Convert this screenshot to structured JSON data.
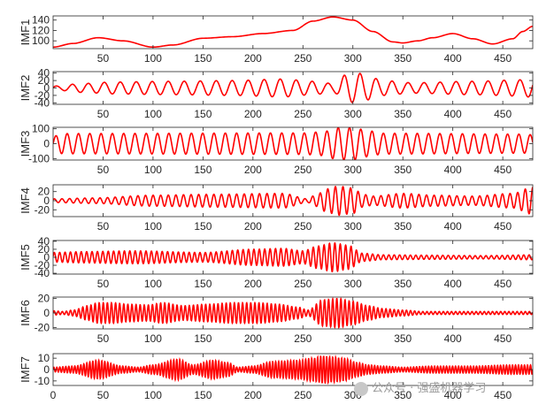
{
  "figure": {
    "watermark": "公众号 · 强盛机器学习"
  },
  "chart_data": [
    {
      "type": "line",
      "ylabel": "IMF1",
      "xlim": [
        0,
        480
      ],
      "ylim": [
        85,
        148
      ],
      "yticks": [
        100,
        120,
        140
      ],
      "xticks": [
        50,
        100,
        150,
        200,
        250,
        300,
        350,
        400,
        450
      ],
      "series": [
        {
          "color": "#ff0000",
          "x": [
            0,
            20,
            45,
            70,
            100,
            120,
            150,
            180,
            210,
            240,
            260,
            280,
            300,
            320,
            340,
            350,
            365,
            380,
            400,
            420,
            440,
            460,
            470,
            480
          ],
          "y": [
            88,
            95,
            106,
            100,
            88,
            92,
            105,
            108,
            114,
            120,
            138,
            146,
            140,
            118,
            98,
            96,
            100,
            106,
            114,
            104,
            94,
            104,
            118,
            128
          ]
        }
      ]
    },
    {
      "type": "line",
      "ylabel": "IMF2",
      "xlim": [
        0,
        480
      ],
      "ylim": [
        -44,
        44
      ],
      "yticks": [
        -40,
        -20,
        0,
        20,
        40
      ],
      "xticks": [
        50,
        100,
        150,
        200,
        250,
        300,
        350,
        400,
        450
      ],
      "osc": {
        "period": 16,
        "phase": 0.3,
        "amp_x": [
          0,
          30,
          60,
          120,
          180,
          230,
          260,
          280,
          295,
          305,
          315,
          330,
          360,
          420,
          470,
          480
        ],
        "amp_y": [
          5,
          12,
          16,
          18,
          20,
          24,
          18,
          12,
          38,
          40,
          32,
          20,
          14,
          18,
          22,
          26
        ]
      }
    },
    {
      "type": "line",
      "ylabel": "IMF3",
      "xlim": [
        0,
        480
      ],
      "ylim": [
        -110,
        110
      ],
      "yticks": [
        -100,
        0,
        100
      ],
      "xticks": [
        50,
        100,
        150,
        200,
        250,
        300,
        350,
        400,
        450
      ],
      "osc": {
        "period": 11.3,
        "phase": 0,
        "amp_x": [
          0,
          10,
          250,
          270,
          285,
          300,
          315,
          330,
          470,
          480
        ],
        "amp_y": [
          50,
          68,
          72,
          80,
          108,
          108,
          88,
          70,
          64,
          60
        ]
      }
    },
    {
      "type": "line",
      "ylabel": "IMF4",
      "xlim": [
        0,
        480
      ],
      "ylim": [
        -35,
        35
      ],
      "yticks": [
        -20,
        0,
        20
      ],
      "xticks": [
        50,
        100,
        150,
        200,
        250,
        300,
        350,
        400,
        450
      ],
      "osc": {
        "period": 7.6,
        "phase": 0.5,
        "amp_x": [
          0,
          40,
          100,
          160,
          230,
          255,
          262,
          275,
          285,
          300,
          310,
          320,
          350,
          380,
          420,
          460,
          480
        ],
        "amp_y": [
          4,
          6,
          12,
          14,
          16,
          4,
          12,
          26,
          32,
          28,
          14,
          10,
          16,
          12,
          10,
          16,
          30
        ]
      }
    },
    {
      "type": "line",
      "ylabel": "IMF5",
      "xlim": [
        0,
        480
      ],
      "ylim": [
        -42,
        42
      ],
      "yticks": [
        -40,
        -20,
        0,
        20,
        40
      ],
      "xticks": [
        50,
        100,
        150,
        200,
        250,
        300,
        350,
        400,
        450
      ],
      "osc": {
        "period": 5.4,
        "phase": 0.2,
        "amp_x": [
          0,
          30,
          80,
          150,
          200,
          230,
          250,
          265,
          280,
          295,
          310,
          330,
          380,
          430,
          480
        ],
        "amp_y": [
          12,
          14,
          16,
          12,
          20,
          22,
          16,
          28,
          36,
          30,
          10,
          6,
          5,
          4,
          6
        ]
      }
    },
    {
      "type": "line",
      "ylabel": "IMF6",
      "xlim": [
        0,
        480
      ],
      "ylim": [
        -22,
        22
      ],
      "yticks": [
        -20,
        0,
        20
      ],
      "xticks": [
        50,
        100,
        150,
        200,
        250,
        300,
        350,
        400,
        450
      ],
      "osc": {
        "period": 4.1,
        "phase": 0,
        "amp_x": [
          0,
          10,
          20,
          35,
          45,
          60,
          75,
          95,
          110,
          130,
          155,
          180,
          205,
          225,
          245,
          255,
          270,
          285,
          300,
          315,
          330,
          350,
          370,
          400,
          440,
          480
        ],
        "amp_y": [
          3,
          2,
          4,
          10,
          14,
          14,
          12,
          11,
          14,
          10,
          12,
          14,
          14,
          12,
          8,
          4,
          18,
          20,
          16,
          10,
          6,
          4,
          2,
          2,
          2,
          2
        ]
      }
    },
    {
      "type": "line",
      "ylabel": "IMF7",
      "xlim": [
        0,
        480
      ],
      "ylim": [
        -14,
        14
      ],
      "yticks": [
        -10,
        0,
        10
      ],
      "xticks": [
        0,
        50,
        100,
        150,
        200,
        250,
        300,
        350,
        400,
        450
      ],
      "xticklabels_on_last": true,
      "osc": {
        "period": 3.0,
        "phase": 0,
        "amp_x": [
          0,
          20,
          45,
          70,
          85,
          100,
          125,
          140,
          160,
          175,
          185,
          200,
          220,
          245,
          260,
          270,
          280,
          290,
          305,
          315,
          330,
          350,
          380,
          420,
          460,
          480
        ],
        "amp_y": [
          2,
          3,
          8,
          3,
          2,
          4,
          9,
          4,
          8,
          6,
          2,
          3,
          7,
          8,
          10,
          12,
          11,
          10,
          6,
          4,
          3,
          2,
          3,
          3,
          4,
          4
        ]
      }
    }
  ]
}
